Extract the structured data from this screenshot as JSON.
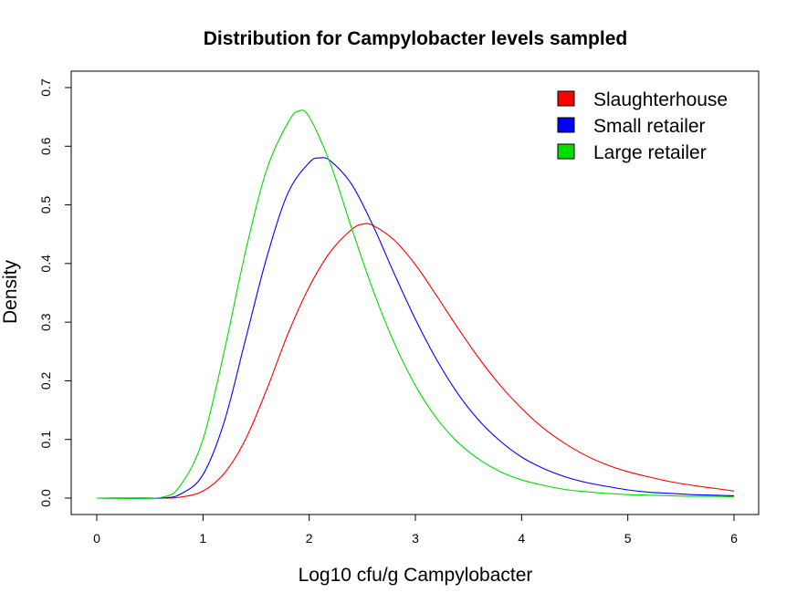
{
  "chart_data": {
    "type": "line",
    "title": "Distribution for Campylobacter levels sampled",
    "xlabel": "Log10 cfu/g Campylobacter",
    "ylabel": "Density",
    "xlim": [
      0,
      6
    ],
    "ylim": [
      0,
      0.7
    ],
    "x_ticks": [
      0,
      1,
      2,
      3,
      4,
      5,
      6
    ],
    "x_tick_labels": [
      "0",
      "1",
      "2",
      "3",
      "4",
      "5",
      "6"
    ],
    "y_ticks": [
      0,
      0.1,
      0.2,
      0.3,
      0.4,
      0.5,
      0.6,
      0.7
    ],
    "y_tick_labels": [
      "0.0",
      "0.1",
      "0.2",
      "0.3",
      "0.4",
      "0.5",
      "0.6",
      "0.7"
    ],
    "grid": false,
    "legend_position": "top-right",
    "series": [
      {
        "name": "Slaughterhouse",
        "color": "#ff0000",
        "x": [
          0.0,
          0.6,
          0.8,
          1.0,
          1.2,
          1.4,
          1.6,
          1.8,
          2.0,
          2.2,
          2.4,
          2.5,
          2.6,
          2.8,
          3.0,
          3.2,
          3.4,
          3.6,
          3.8,
          4.0,
          4.2,
          4.4,
          4.6,
          4.8,
          5.0,
          5.2,
          5.4,
          5.6,
          5.8,
          6.0
        ],
        "y": [
          0.0,
          0.0,
          0.002,
          0.012,
          0.042,
          0.1,
          0.185,
          0.28,
          0.36,
          0.42,
          0.458,
          0.467,
          0.465,
          0.44,
          0.398,
          0.345,
          0.29,
          0.238,
          0.192,
          0.153,
          0.12,
          0.094,
          0.073,
          0.057,
          0.045,
          0.036,
          0.028,
          0.022,
          0.017,
          0.012
        ]
      },
      {
        "name": "Small retailer",
        "color": "#0000ff",
        "x": [
          0.0,
          0.6,
          0.8,
          1.0,
          1.2,
          1.4,
          1.6,
          1.8,
          2.0,
          2.1,
          2.2,
          2.4,
          2.6,
          2.8,
          3.0,
          3.2,
          3.4,
          3.6,
          3.8,
          4.0,
          4.2,
          4.4,
          4.6,
          4.8,
          5.0,
          5.2,
          5.4,
          5.6,
          5.8,
          6.0
        ],
        "y": [
          0.0,
          0.0,
          0.008,
          0.04,
          0.13,
          0.27,
          0.41,
          0.52,
          0.572,
          0.58,
          0.575,
          0.535,
          0.465,
          0.383,
          0.305,
          0.236,
          0.178,
          0.132,
          0.097,
          0.07,
          0.051,
          0.037,
          0.027,
          0.02,
          0.014,
          0.01,
          0.008,
          0.006,
          0.005,
          0.004
        ]
      },
      {
        "name": "Large retailer",
        "color": "#00dd00",
        "x": [
          0.0,
          0.6,
          0.8,
          1.0,
          1.2,
          1.4,
          1.6,
          1.8,
          1.9,
          2.0,
          2.2,
          2.4,
          2.6,
          2.8,
          3.0,
          3.2,
          3.4,
          3.6,
          3.8,
          4.0,
          4.2,
          4.4,
          4.6,
          4.8,
          5.0,
          5.2,
          5.4,
          5.6,
          5.8,
          6.0
        ],
        "y": [
          0.0,
          0.001,
          0.025,
          0.1,
          0.25,
          0.42,
          0.56,
          0.64,
          0.66,
          0.65,
          0.57,
          0.46,
          0.355,
          0.265,
          0.192,
          0.136,
          0.095,
          0.066,
          0.045,
          0.031,
          0.022,
          0.015,
          0.011,
          0.008,
          0.006,
          0.005,
          0.004,
          0.003,
          0.003,
          0.002
        ]
      }
    ]
  }
}
